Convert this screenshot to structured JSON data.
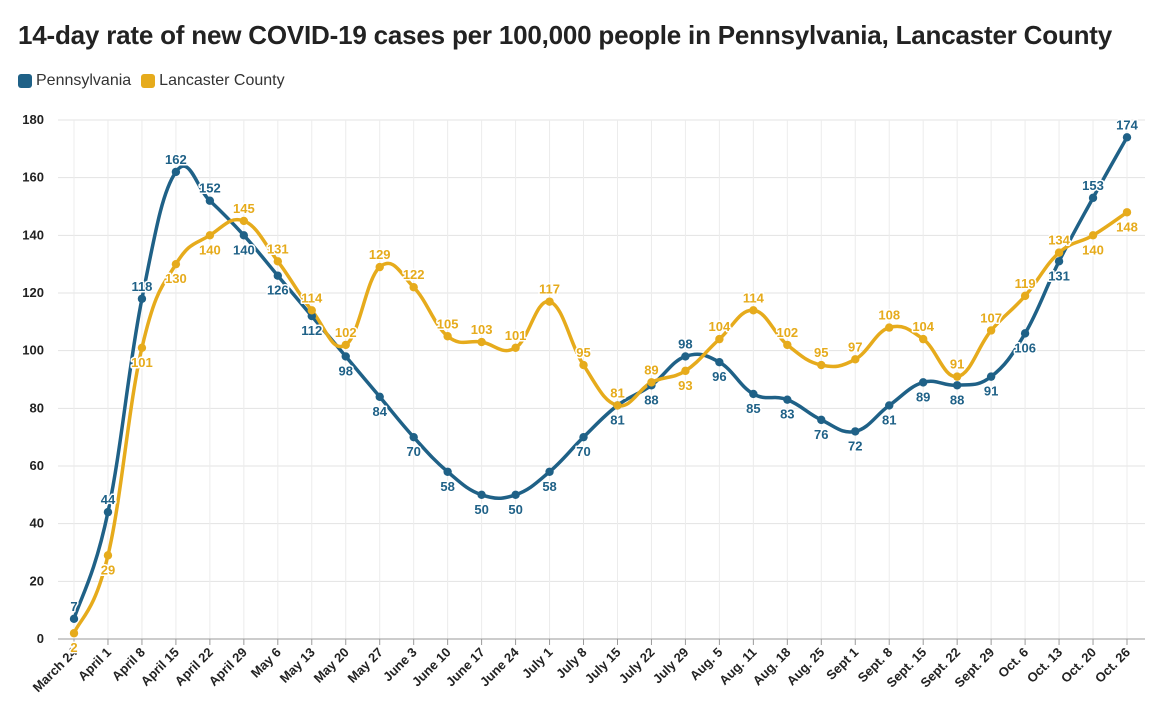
{
  "chart_data": {
    "type": "line",
    "title": "14-day rate of new COVID-19 cases per 100,000 people in Pennsylvania, Lancaster County",
    "xlabel": "",
    "ylabel": "",
    "ylim": [
      0,
      180
    ],
    "yticks": [
      0,
      20,
      40,
      60,
      80,
      100,
      120,
      140,
      160,
      180
    ],
    "grid": true,
    "legend_position": "top-left",
    "categories": [
      "March 24",
      "April 1",
      "April 8",
      "April 15",
      "April 22",
      "April 29",
      "May 6",
      "May 13",
      "May 20",
      "May 27",
      "June 3",
      "June 10",
      "June 17",
      "June 24",
      "July 1",
      "July 8",
      "July 15",
      "July 22",
      "July 29",
      "Aug. 5",
      "Aug. 11",
      "Aug. 18",
      "Aug. 25",
      "Sept 1",
      "Sept. 8",
      "Sept. 15",
      "Sept. 22",
      "Sept. 29",
      "Oct. 6",
      "Oct. 13",
      "Oct. 20",
      "Oct. 26"
    ],
    "series": [
      {
        "name": "Pennsylvania",
        "color": "#1f6187",
        "values": [
          7,
          44,
          118,
          162,
          152,
          140,
          126,
          112,
          98,
          84,
          70,
          58,
          50,
          50,
          58,
          70,
          81,
          88,
          98,
          96,
          85,
          83,
          76,
          72,
          81,
          89,
          88,
          91,
          106,
          131,
          153,
          174
        ]
      },
      {
        "name": "Lancaster County",
        "color": "#e6ab1c",
        "values": [
          2,
          29,
          101,
          130,
          140,
          145,
          131,
          114,
          102,
          129,
          122,
          105,
          103,
          101,
          117,
          95,
          81,
          89,
          93,
          104,
          114,
          102,
          95,
          97,
          108,
          104,
          91,
          107,
          119,
          134,
          140,
          148
        ]
      }
    ]
  }
}
